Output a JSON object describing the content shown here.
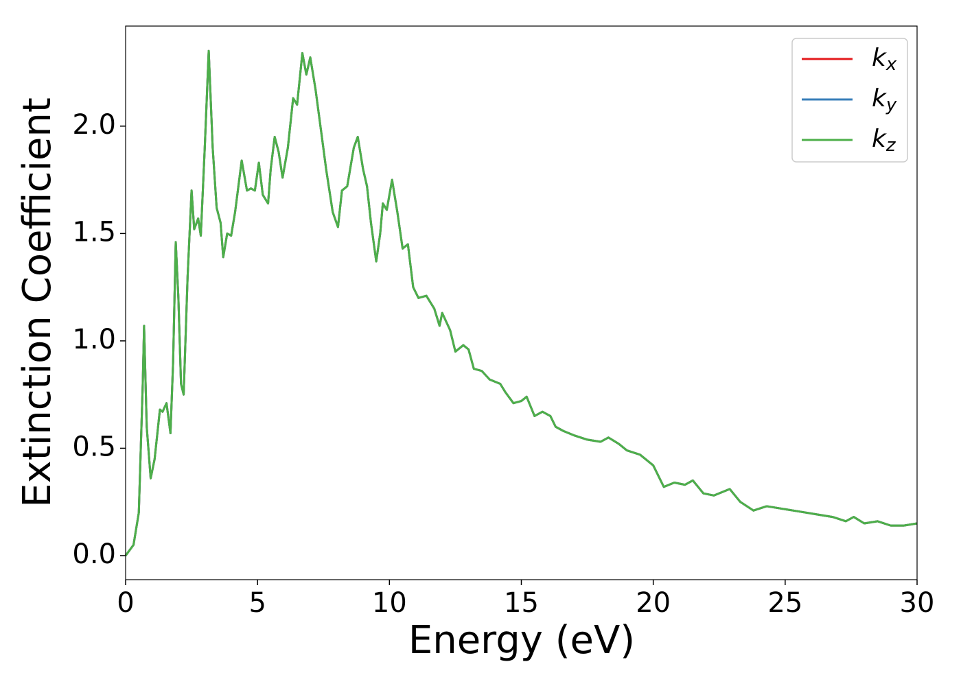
{
  "chart_data": {
    "type": "line",
    "xlabel": "Energy (eV)",
    "ylabel": "Extinction Coefficient",
    "x": [
      0,
      0.3,
      0.5,
      0.65,
      0.7,
      0.8,
      0.95,
      1.1,
      1.3,
      1.4,
      1.55,
      1.7,
      1.8,
      1.9,
      2.0,
      2.1,
      2.2,
      2.35,
      2.5,
      2.6,
      2.75,
      2.85,
      3.0,
      3.15,
      3.3,
      3.45,
      3.6,
      3.7,
      3.85,
      4.0,
      4.15,
      4.4,
      4.6,
      4.75,
      4.9,
      5.05,
      5.2,
      5.4,
      5.5,
      5.65,
      5.8,
      5.95,
      6.15,
      6.35,
      6.5,
      6.7,
      6.85,
      7.0,
      7.2,
      7.45,
      7.6,
      7.85,
      8.05,
      8.2,
      8.4,
      8.65,
      8.8,
      9.0,
      9.15,
      9.3,
      9.5,
      9.65,
      9.75,
      9.9,
      10.1,
      10.3,
      10.5,
      10.7,
      10.9,
      11.1,
      11.4,
      11.7,
      11.9,
      12.0,
      12.3,
      12.5,
      12.8,
      13.0,
      13.2,
      13.5,
      13.8,
      14.2,
      14.4,
      14.7,
      15.0,
      15.2,
      15.5,
      15.8,
      16.1,
      16.3,
      16.6,
      17.0,
      17.5,
      18.0,
      18.3,
      18.7,
      19.0,
      19.5,
      20.0,
      20.4,
      20.8,
      21.2,
      21.5,
      21.9,
      22.3,
      22.9,
      23.3,
      23.8,
      24.3,
      24.8,
      25.3,
      25.8,
      26.3,
      26.8,
      27.3,
      27.6,
      28.0,
      28.5,
      29.0,
      29.5,
      30.0
    ],
    "series": [
      {
        "name": "kx",
        "color": "#e41a1c",
        "values": [
          0.0,
          0.05,
          0.2,
          0.8,
          1.07,
          0.6,
          0.36,
          0.45,
          0.68,
          0.67,
          0.71,
          0.57,
          0.9,
          1.46,
          1.2,
          0.8,
          0.75,
          1.3,
          1.7,
          1.52,
          1.57,
          1.49,
          1.9,
          2.35,
          1.9,
          1.62,
          1.55,
          1.39,
          1.5,
          1.49,
          1.6,
          1.84,
          1.7,
          1.71,
          1.7,
          1.83,
          1.68,
          1.64,
          1.8,
          1.95,
          1.88,
          1.76,
          1.9,
          2.13,
          2.1,
          2.34,
          2.24,
          2.32,
          2.17,
          1.94,
          1.8,
          1.6,
          1.53,
          1.7,
          1.72,
          1.9,
          1.95,
          1.8,
          1.72,
          1.55,
          1.37,
          1.5,
          1.64,
          1.61,
          1.75,
          1.6,
          1.43,
          1.45,
          1.25,
          1.2,
          1.21,
          1.15,
          1.07,
          1.13,
          1.05,
          0.95,
          0.98,
          0.96,
          0.87,
          0.86,
          0.82,
          0.8,
          0.76,
          0.71,
          0.72,
          0.74,
          0.65,
          0.67,
          0.65,
          0.6,
          0.58,
          0.56,
          0.54,
          0.53,
          0.55,
          0.52,
          0.49,
          0.47,
          0.42,
          0.32,
          0.34,
          0.33,
          0.35,
          0.29,
          0.28,
          0.31,
          0.25,
          0.21,
          0.23,
          0.22,
          0.21,
          0.2,
          0.19,
          0.18,
          0.16,
          0.18,
          0.15,
          0.16,
          0.14,
          0.14,
          0.15
        ]
      },
      {
        "name": "ky",
        "color": "#377eb8",
        "values": [
          0.0,
          0.05,
          0.2,
          0.8,
          1.07,
          0.6,
          0.36,
          0.45,
          0.68,
          0.67,
          0.71,
          0.57,
          0.9,
          1.46,
          1.2,
          0.8,
          0.75,
          1.3,
          1.7,
          1.52,
          1.57,
          1.49,
          1.9,
          2.35,
          1.9,
          1.62,
          1.55,
          1.39,
          1.5,
          1.49,
          1.6,
          1.84,
          1.7,
          1.71,
          1.7,
          1.83,
          1.68,
          1.64,
          1.8,
          1.95,
          1.88,
          1.76,
          1.9,
          2.13,
          2.1,
          2.34,
          2.24,
          2.32,
          2.17,
          1.94,
          1.8,
          1.6,
          1.53,
          1.7,
          1.72,
          1.9,
          1.95,
          1.8,
          1.72,
          1.55,
          1.37,
          1.5,
          1.64,
          1.61,
          1.75,
          1.6,
          1.43,
          1.45,
          1.25,
          1.2,
          1.21,
          1.15,
          1.07,
          1.13,
          1.05,
          0.95,
          0.98,
          0.96,
          0.87,
          0.86,
          0.82,
          0.8,
          0.76,
          0.71,
          0.72,
          0.74,
          0.65,
          0.67,
          0.65,
          0.6,
          0.58,
          0.56,
          0.54,
          0.53,
          0.55,
          0.52,
          0.49,
          0.47,
          0.42,
          0.32,
          0.34,
          0.33,
          0.35,
          0.29,
          0.28,
          0.31,
          0.25,
          0.21,
          0.23,
          0.22,
          0.21,
          0.2,
          0.19,
          0.18,
          0.16,
          0.18,
          0.15,
          0.16,
          0.14,
          0.14,
          0.15
        ]
      },
      {
        "name": "kz",
        "color": "#4daf4a",
        "values": [
          0.0,
          0.05,
          0.2,
          0.8,
          1.07,
          0.6,
          0.36,
          0.45,
          0.68,
          0.67,
          0.71,
          0.57,
          0.9,
          1.46,
          1.2,
          0.8,
          0.75,
          1.3,
          1.7,
          1.52,
          1.57,
          1.49,
          1.9,
          2.35,
          1.9,
          1.62,
          1.55,
          1.39,
          1.5,
          1.49,
          1.6,
          1.84,
          1.7,
          1.71,
          1.7,
          1.83,
          1.68,
          1.64,
          1.8,
          1.95,
          1.88,
          1.76,
          1.9,
          2.13,
          2.1,
          2.34,
          2.24,
          2.32,
          2.17,
          1.94,
          1.8,
          1.6,
          1.53,
          1.7,
          1.72,
          1.9,
          1.95,
          1.8,
          1.72,
          1.55,
          1.37,
          1.5,
          1.64,
          1.61,
          1.75,
          1.6,
          1.43,
          1.45,
          1.25,
          1.2,
          1.21,
          1.15,
          1.07,
          1.13,
          1.05,
          0.95,
          0.98,
          0.96,
          0.87,
          0.86,
          0.82,
          0.8,
          0.76,
          0.71,
          0.72,
          0.74,
          0.65,
          0.67,
          0.65,
          0.6,
          0.58,
          0.56,
          0.54,
          0.53,
          0.55,
          0.52,
          0.49,
          0.47,
          0.42,
          0.32,
          0.34,
          0.33,
          0.35,
          0.29,
          0.28,
          0.31,
          0.25,
          0.21,
          0.23,
          0.22,
          0.21,
          0.2,
          0.19,
          0.18,
          0.16,
          0.18,
          0.15,
          0.16,
          0.14,
          0.14,
          0.15
        ]
      }
    ],
    "xlim": [
      0,
      30
    ],
    "xticks": [
      0,
      5,
      10,
      15,
      20,
      25,
      30
    ],
    "ylim": [
      -0.112,
      2.466
    ],
    "yticks": [
      {
        "value": 0,
        "label": "0.0"
      },
      0.5,
      {
        "value": 1,
        "label": "1.0"
      },
      1.5,
      {
        "value": 2,
        "label": "2.0"
      }
    ],
    "grid": false,
    "legend": "upper right"
  }
}
